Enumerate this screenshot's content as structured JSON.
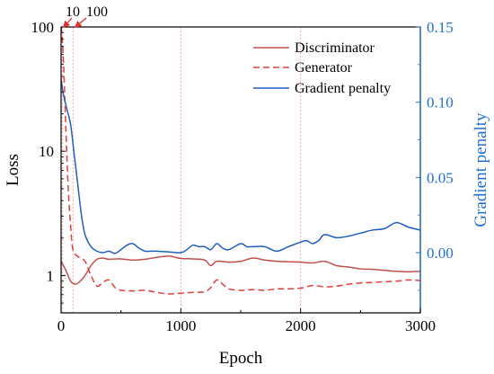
{
  "chart_data": {
    "type": "line",
    "xlabel": "Epoch",
    "ylabel_left": "Loss",
    "ylabel_right": "Gradient penalty",
    "x_ticks": [
      0,
      1000,
      2000,
      3000
    ],
    "x_tick_labels": [
      "0",
      "1000",
      "2000",
      "3000"
    ],
    "xlim": [
      0,
      3000
    ],
    "y_left_scale": "log",
    "y_left_lim": [
      0.5,
      100
    ],
    "y_left_ticks": [
      1,
      10,
      100
    ],
    "y_left_tick_labels": [
      "1",
      "10",
      "100"
    ],
    "y_right_lim": [
      -0.04,
      0.15
    ],
    "y_right_ticks": [
      0.0,
      0.05,
      0.1,
      0.15
    ],
    "y_right_tick_labels": [
      "0.00",
      "0.05",
      "0.10",
      "0.15"
    ],
    "vertical_guides": [
      10,
      100,
      1000,
      2000
    ],
    "annotations": [
      {
        "text": "10",
        "x": 10
      },
      {
        "text": "100",
        "x": 100
      }
    ],
    "legend_position": "top-right",
    "colors": {
      "discriminator": "#c0504d",
      "generator": "#e0403a",
      "gradient_penalty": "#1f5fbf",
      "right_axis": "#1f6fd0",
      "guides": "#f0a0a0",
      "annotation_arrow": "#e03030"
    },
    "series": [
      {
        "name": "Discriminator",
        "axis": "left",
        "style": "solid",
        "x": [
          0,
          40,
          80,
          120,
          160,
          200,
          250,
          300,
          350,
          400,
          500,
          600,
          700,
          800,
          900,
          1000,
          1100,
          1200,
          1250,
          1300,
          1400,
          1500,
          1600,
          1700,
          1800,
          1900,
          2000,
          2100,
          2200,
          2300,
          2400,
          2500,
          2600,
          2700,
          2800,
          2900,
          3000
        ],
        "values": [
          1.3,
          1.1,
          0.9,
          0.85,
          0.9,
          1.0,
          1.2,
          1.35,
          1.38,
          1.35,
          1.36,
          1.33,
          1.35,
          1.4,
          1.43,
          1.37,
          1.36,
          1.33,
          1.2,
          1.3,
          1.28,
          1.3,
          1.38,
          1.33,
          1.3,
          1.29,
          1.28,
          1.26,
          1.3,
          1.2,
          1.17,
          1.13,
          1.12,
          1.1,
          1.08,
          1.07,
          1.08
        ]
      },
      {
        "name": "Generator",
        "axis": "left",
        "style": "dashed",
        "x": [
          0,
          10,
          25,
          40,
          60,
          80,
          100,
          150,
          200,
          250,
          300,
          350,
          400,
          450,
          500,
          600,
          700,
          800,
          900,
          1000,
          1100,
          1200,
          1250,
          1300,
          1350,
          1400,
          1500,
          1600,
          1700,
          1800,
          1900,
          2000,
          2100,
          2200,
          2300,
          2400,
          2500,
          2600,
          2700,
          2800,
          2900,
          3000
        ],
        "values": [
          100,
          80,
          40,
          15,
          5,
          2.5,
          1.6,
          1.4,
          1.3,
          1.0,
          0.82,
          0.88,
          0.92,
          0.8,
          0.76,
          0.75,
          0.76,
          0.73,
          0.71,
          0.72,
          0.73,
          0.74,
          0.8,
          0.92,
          0.85,
          0.78,
          0.76,
          0.77,
          0.76,
          0.78,
          0.78,
          0.79,
          0.83,
          0.81,
          0.82,
          0.85,
          0.87,
          0.88,
          0.89,
          0.9,
          0.92,
          0.91
        ]
      },
      {
        "name": "Gradient penalty",
        "axis": "right",
        "style": "solid",
        "x": [
          0,
          20,
          50,
          80,
          110,
          140,
          170,
          200,
          250,
          300,
          350,
          400,
          450,
          500,
          550,
          600,
          650,
          700,
          750,
          800,
          900,
          1000,
          1050,
          1100,
          1150,
          1200,
          1250,
          1300,
          1350,
          1400,
          1500,
          1550,
          1600,
          1700,
          1800,
          1900,
          2000,
          2050,
          2100,
          2150,
          2200,
          2300,
          2400,
          2500,
          2600,
          2700,
          2800,
          2900,
          3000
        ],
        "values": [
          0.115,
          0.105,
          0.095,
          0.085,
          0.065,
          0.045,
          0.025,
          0.012,
          0.004,
          0.001,
          0.0,
          0.001,
          -0.0005,
          0.002,
          0.005,
          0.006,
          0.003,
          0.001,
          0.001,
          0.001,
          0.0005,
          0.0,
          0.002,
          0.005,
          0.004,
          0.004,
          0.002,
          0.006,
          0.003,
          0.002,
          0.006,
          0.004,
          0.004,
          0.004,
          0.001,
          0.004,
          0.007,
          0.008,
          0.006,
          0.008,
          0.012,
          0.01,
          0.011,
          0.013,
          0.015,
          0.016,
          0.02,
          0.017,
          0.015
        ]
      }
    ]
  }
}
